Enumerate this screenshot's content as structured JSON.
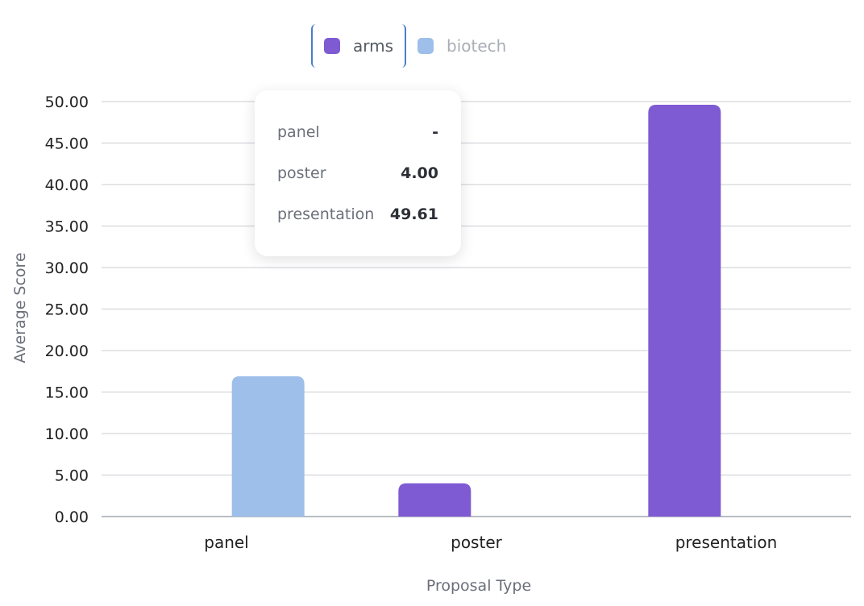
{
  "chart_data": {
    "type": "bar",
    "categories": [
      "panel",
      "poster",
      "presentation"
    ],
    "series": [
      {
        "name": "arms",
        "color": "#7e5bd3",
        "values": [
          null,
          4.0,
          49.61
        ]
      },
      {
        "name": "biotech",
        "color": "#9dbfe9",
        "values": [
          16.9,
          null,
          null
        ]
      }
    ],
    "xlabel": "Proposal Type",
    "ylabel": "Average Score",
    "ylim": [
      0,
      50
    ],
    "yticks": [
      "0.00",
      "5.00",
      "10.00",
      "15.00",
      "20.00",
      "25.00",
      "30.00",
      "35.00",
      "40.00",
      "45.00",
      "50.00"
    ],
    "grid": true,
    "legend_position": "top-center"
  },
  "legend": {
    "items": [
      {
        "label": "arms",
        "color": "#7e5bd3",
        "state": "active"
      },
      {
        "label": "biotech",
        "color": "#9dbfe9",
        "state": "inactive"
      }
    ]
  },
  "tooltip": {
    "rows": [
      {
        "key": "panel",
        "value": "-"
      },
      {
        "key": "poster",
        "value": "4.00"
      },
      {
        "key": "presentation",
        "value": "49.61"
      }
    ]
  }
}
